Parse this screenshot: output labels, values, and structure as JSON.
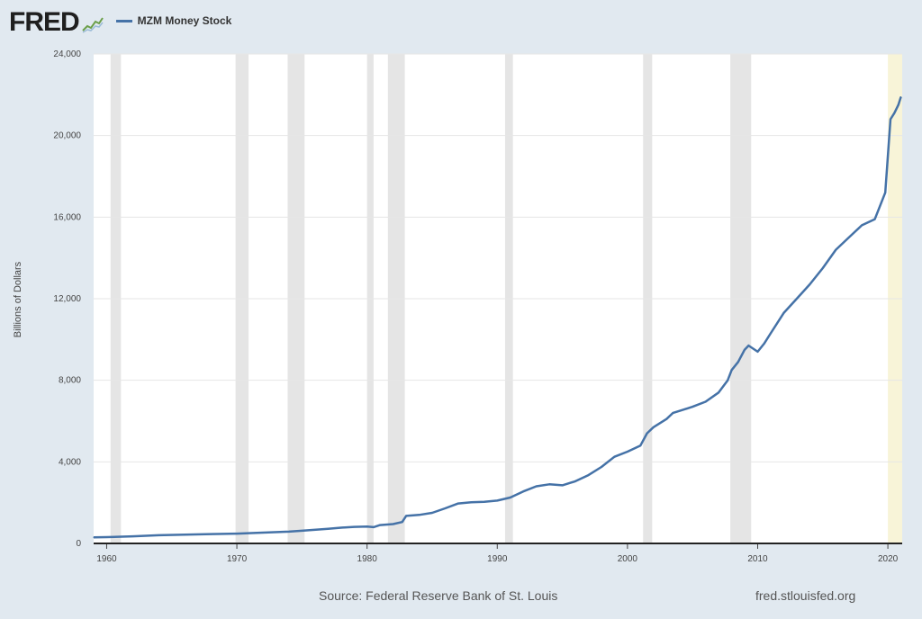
{
  "header": {
    "logo_text": "FRED",
    "logo_icon": "fred-graph-icon",
    "legend_label": "MZM Money Stock"
  },
  "footer": {
    "source": "Source: Federal Reserve Bank of St. Louis",
    "site": "fred.stlouisfed.org"
  },
  "colors": {
    "series": "#4572a7",
    "recession": "#e5e5e5",
    "forecast_shade": "#f8f4d8",
    "background": "#e1e9f0",
    "plot_bg": "#ffffff"
  },
  "chart_data": {
    "type": "line",
    "title": "",
    "xlabel": "",
    "ylabel": "Billions of Dollars",
    "xlim": [
      1959.0,
      2021.1
    ],
    "ylim": [
      0,
      24000
    ],
    "yticks": [
      0,
      4000,
      8000,
      12000,
      16000,
      20000,
      24000
    ],
    "ytick_labels": [
      "0",
      "4,000",
      "8,000",
      "12,000",
      "16,000",
      "20,000",
      "24,000"
    ],
    "xticks": [
      1960,
      1970,
      1980,
      1990,
      2000,
      2010,
      2020
    ],
    "xtick_labels": [
      "1960",
      "1970",
      "1980",
      "1990",
      "2000",
      "2010",
      "2020"
    ],
    "grid": true,
    "legend": "top-left",
    "recessions": [
      [
        1960.3,
        1961.1
      ],
      [
        1969.9,
        1970.9
      ],
      [
        1973.9,
        1975.2
      ],
      [
        1980.0,
        1980.5
      ],
      [
        1981.6,
        1982.9
      ],
      [
        1990.6,
        1991.2
      ],
      [
        2001.2,
        2001.9
      ],
      [
        2007.9,
        2009.5
      ]
    ],
    "highlight": [
      [
        2020.0,
        2021.1
      ]
    ],
    "series": [
      {
        "name": "MZM Money Stock",
        "x": [
          1959.0,
          1960,
          1962,
          1964,
          1966,
          1968,
          1970,
          1972,
          1974,
          1975,
          1977,
          1978,
          1979,
          1980,
          1980.5,
          1981,
          1982,
          1982.7,
          1983.0,
          1984,
          1985,
          1986,
          1987,
          1988,
          1989,
          1990,
          1991,
          1992,
          1993,
          1994,
          1995,
          1996,
          1997,
          1998,
          1999,
          2000,
          2001,
          2001.5,
          2002,
          2003,
          2003.5,
          2004,
          2005,
          2006,
          2007,
          2007.7,
          2008,
          2008.5,
          2009,
          2009.3,
          2010,
          2010.5,
          2011,
          2012,
          2013,
          2014,
          2015,
          2016,
          2017,
          2018,
          2019,
          2019.8,
          2020.2,
          2020.5,
          2020.8,
          2021.0
        ],
        "values": [
          300,
          310,
          350,
          400,
          430,
          460,
          480,
          530,
          580,
          620,
          720,
          770,
          810,
          830,
          800,
          900,
          950,
          1050,
          1350,
          1400,
          1500,
          1720,
          1960,
          2020,
          2040,
          2100,
          2250,
          2550,
          2800,
          2900,
          2850,
          3050,
          3350,
          3750,
          4250,
          4500,
          4800,
          5400,
          5700,
          6100,
          6400,
          6500,
          6700,
          6950,
          7400,
          8000,
          8500,
          8900,
          9500,
          9700,
          9400,
          9800,
          10300,
          11300,
          12000,
          12700,
          13500,
          14400,
          15000,
          15600,
          15900,
          17200,
          20800,
          21100,
          21500,
          21900
        ]
      }
    ]
  }
}
